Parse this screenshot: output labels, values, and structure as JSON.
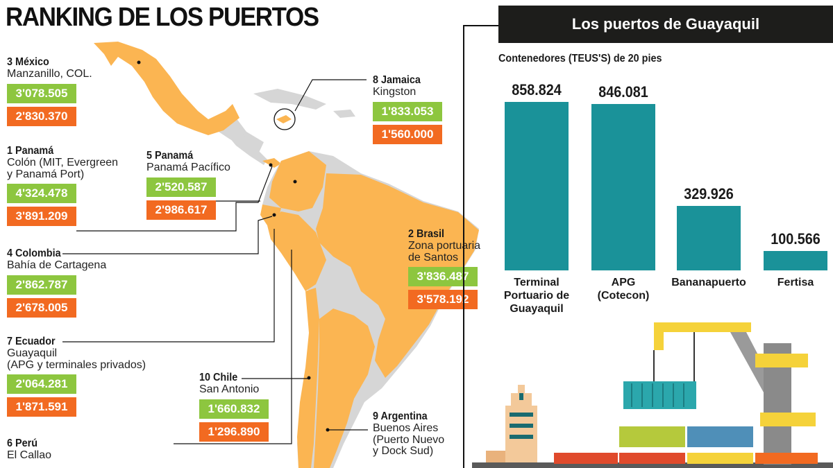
{
  "title": "RANKING DE LOS PUERTOS",
  "ports": [
    {
      "id": "mexico",
      "name": "3 México",
      "location": [
        "Manzanillo, COL."
      ],
      "v1": "3'078.505",
      "v2": "2'830.370"
    },
    {
      "id": "jamaica",
      "name": "8 Jamaica",
      "location": [
        "Kingston"
      ],
      "v1": "1'833.053",
      "v2": "1'560.000"
    },
    {
      "id": "panama1",
      "name": "1 Panamá",
      "location": [
        "Colón (MIT, Evergreen",
        "y Panamá Port)"
      ],
      "v1": "4'324.478",
      "v2": "3'891.209"
    },
    {
      "id": "panama5",
      "name": "5 Panamá",
      "location": [
        "Panamá Pacífico"
      ],
      "v1": "2'520.587",
      "v2": "2'986.617"
    },
    {
      "id": "colombia",
      "name": "4 Colombia",
      "location": [
        "Bahía de Cartagena"
      ],
      "v1": "2'862.787",
      "v2": "2'678.005"
    },
    {
      "id": "brasil",
      "name": "2 Brasil",
      "location": [
        "Zona portuaria",
        "de Santos"
      ],
      "v1": "3'836.487",
      "v2": "3'578.192"
    },
    {
      "id": "ecuador",
      "name": "7 Ecuador",
      "location": [
        "Guayaquil",
        "(APG y terminales privados)"
      ],
      "v1": "2'064.281",
      "v2": "1'871.591"
    },
    {
      "id": "chile",
      "name": "10 Chile",
      "location": [
        "San Antonio"
      ],
      "v1": "1'660.832",
      "v2": "1'296.890"
    },
    {
      "id": "argentina",
      "name": "9 Argentina",
      "location": [
        "Buenos Aires",
        "(Puerto Nuevo",
        "y Dock Sud)"
      ],
      "v1": "",
      "v2": ""
    },
    {
      "id": "peru",
      "name": "6 Perú",
      "location": [
        "El Callao"
      ],
      "v1": "",
      "v2": ""
    }
  ],
  "colors": {
    "green": "#8dc63f",
    "orange": "#f26a21",
    "map": "#fbb552",
    "teal": "#1a9299",
    "dark": "#1d1d1b"
  },
  "panel": {
    "title": "Los puertos de Guayaquil",
    "subtitle": "Contenedores (TEUS'S) de 20 pies"
  },
  "chart_data": {
    "type": "bar",
    "title": "Los puertos de Guayaquil",
    "subtitle": "Contenedores (TEUS'S) de 20 pies",
    "categories": [
      "Terminal Portuario de Guayaquil",
      "APG (Cotecon)",
      "Bananapuerto",
      "Fertisa"
    ],
    "category_lines": [
      [
        "Terminal",
        "Portuario de",
        "Guayaquil"
      ],
      [
        "APG",
        "(Cotecon)"
      ],
      [
        "Bananapuerto"
      ],
      [
        "Fertisa"
      ]
    ],
    "values": [
      858824,
      846081,
      329926,
      100566
    ],
    "value_labels": [
      "858.824",
      "846.081",
      "329.926",
      "100.566"
    ],
    "ylim": [
      0,
      900000
    ],
    "grid": false
  }
}
